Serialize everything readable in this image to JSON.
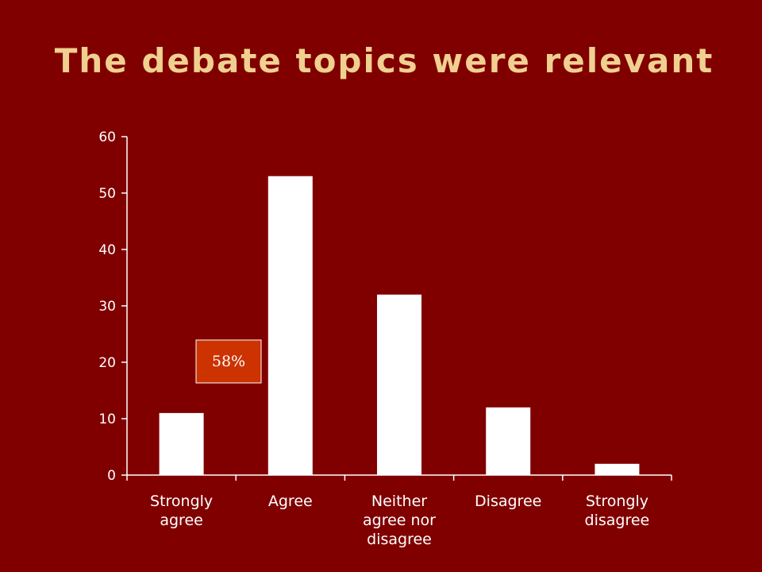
{
  "slide": {
    "title": "The debate topics were relevant"
  },
  "colors": {
    "background": "#800000",
    "title": "#f0d090",
    "bars": "#ffffff",
    "axis": "#ffffff",
    "callout_fill": "#cc3300",
    "callout_border": "#ffffff"
  },
  "chart_data": {
    "type": "bar",
    "title": "The debate topics were relevant",
    "categories": [
      [
        "Strongly",
        "agree"
      ],
      [
        "Agree"
      ],
      [
        "Neither",
        "agree nor",
        "disagree"
      ],
      [
        "Disagree"
      ],
      [
        "Strongly",
        "disagree"
      ]
    ],
    "values": [
      11,
      53,
      32,
      12,
      2
    ],
    "ylim": [
      0,
      60
    ],
    "yticks": [
      0,
      10,
      20,
      30,
      40,
      50,
      60
    ],
    "grid": false,
    "legend": "none",
    "annotations": [
      {
        "text": "58%",
        "y": 20
      }
    ]
  }
}
